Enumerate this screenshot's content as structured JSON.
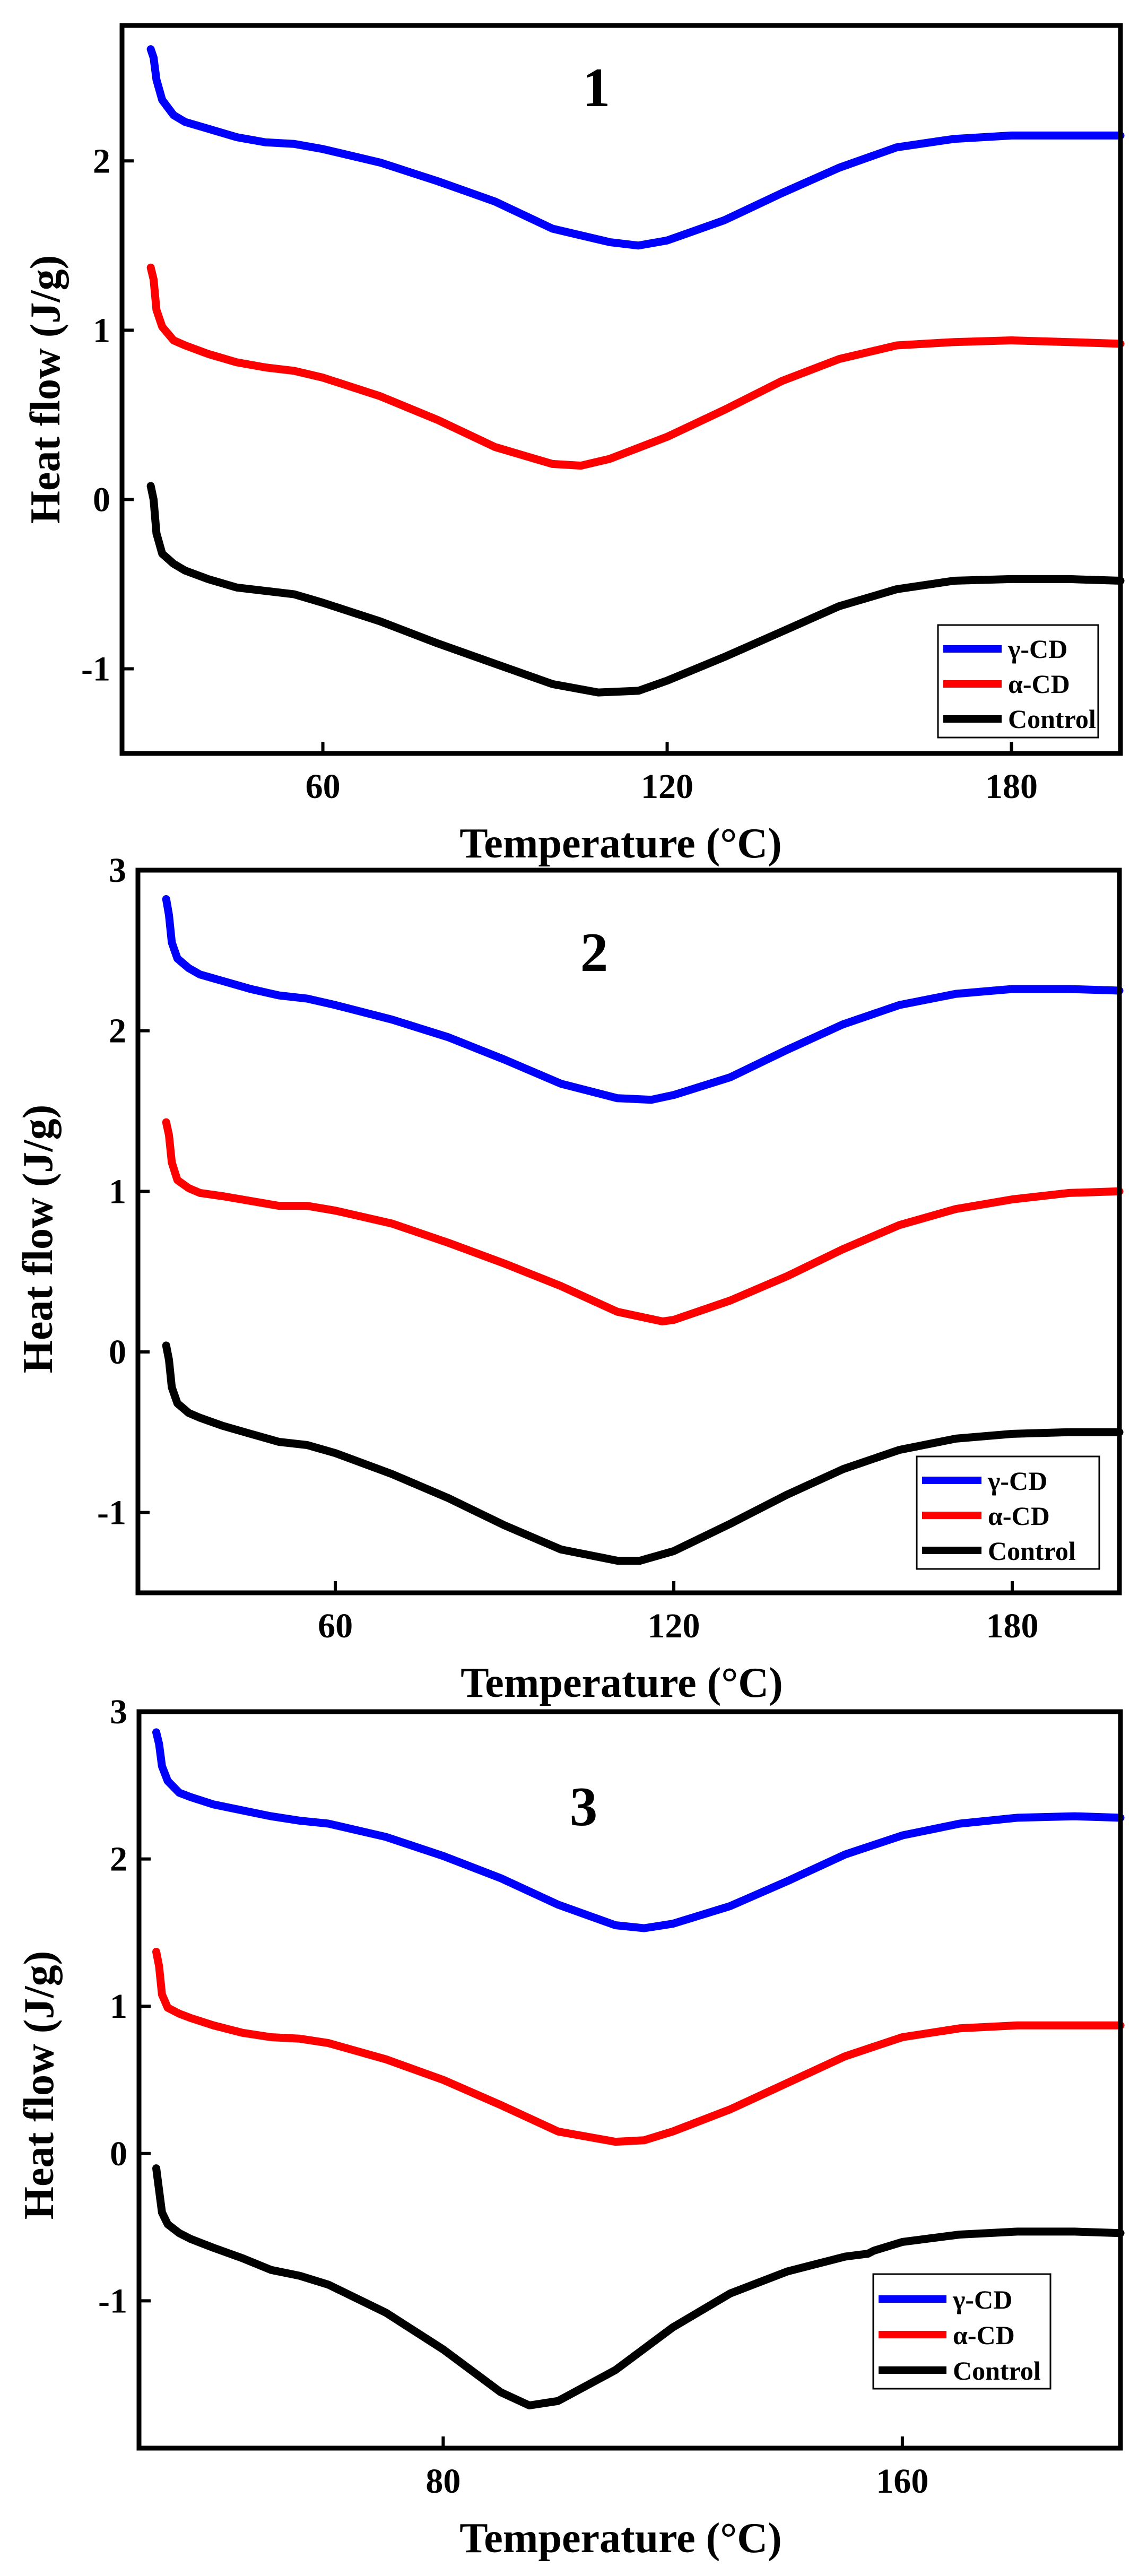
{
  "chart_data": [
    {
      "type": "line",
      "panel_label": "1",
      "xlabel": "Temperature (°C)",
      "ylabel": "Heat flow (J/g)",
      "xlim": [
        25,
        199
      ],
      "ylim": [
        -1.5,
        2.8
      ],
      "xticks": [
        60,
        120,
        180
      ],
      "xtick_labels": [
        "60",
        "120",
        "180"
      ],
      "yticks": [
        -1,
        0,
        1,
        2
      ],
      "ytick_labels": [
        "-1",
        "0",
        "1",
        "2"
      ],
      "legend_position": "bottom-right",
      "series": [
        {
          "name": "γ-CD",
          "color": "#0000ff",
          "x": [
            30,
            30.5,
            31,
            32,
            34,
            36,
            40,
            45,
            50,
            55,
            60,
            70,
            80,
            90,
            100,
            110,
            115,
            120,
            130,
            140,
            150,
            160,
            170,
            180,
            190,
            199
          ],
          "y": [
            2.66,
            2.61,
            2.48,
            2.36,
            2.27,
            2.23,
            2.19,
            2.14,
            2.11,
            2.1,
            2.07,
            1.99,
            1.88,
            1.76,
            1.6,
            1.52,
            1.5,
            1.53,
            1.65,
            1.81,
            1.96,
            2.08,
            2.13,
            2.15,
            2.15,
            2.15
          ]
        },
        {
          "name": "α-CD",
          "color": "#ff0000",
          "x": [
            30,
            30.5,
            31,
            32,
            34,
            36,
            40,
            45,
            50,
            55,
            60,
            70,
            80,
            90,
            100,
            105,
            110,
            120,
            130,
            140,
            150,
            160,
            170,
            180,
            190,
            199
          ],
          "y": [
            1.37,
            1.3,
            1.12,
            1.02,
            0.94,
            0.91,
            0.86,
            0.81,
            0.78,
            0.76,
            0.72,
            0.61,
            0.47,
            0.31,
            0.21,
            0.2,
            0.24,
            0.37,
            0.53,
            0.7,
            0.83,
            0.91,
            0.93,
            0.94,
            0.93,
            0.92
          ]
        },
        {
          "name": "Control",
          "color": "#000000",
          "x": [
            30,
            30.5,
            31,
            32,
            34,
            36,
            40,
            45,
            50,
            55,
            60,
            70,
            80,
            90,
            100,
            108,
            115,
            120,
            130,
            140,
            150,
            160,
            170,
            180,
            190,
            199
          ],
          "y": [
            0.08,
            0.0,
            -0.2,
            -0.32,
            -0.38,
            -0.42,
            -0.47,
            -0.52,
            -0.54,
            -0.56,
            -0.61,
            -0.72,
            -0.85,
            -0.97,
            -1.09,
            -1.14,
            -1.13,
            -1.07,
            -0.93,
            -0.78,
            -0.63,
            -0.53,
            -0.48,
            -0.47,
            -0.47,
            -0.48
          ]
        }
      ]
    },
    {
      "type": "line",
      "panel_label": "2",
      "xlabel": "Temperature (°C)",
      "ylabel": "Heat flow (J/g)",
      "xlim": [
        25,
        199
      ],
      "ylim": [
        -1.5,
        3.0
      ],
      "xticks": [
        60,
        120,
        180
      ],
      "xtick_labels": [
        "60",
        "120",
        "180"
      ],
      "yticks": [
        -1,
        0,
        1,
        2,
        3
      ],
      "ytick_labels": [
        "-1",
        "0",
        "1",
        "2",
        "3"
      ],
      "legend_position": "bottom-right",
      "series": [
        {
          "name": "γ-CD",
          "color": "#0000ff",
          "x": [
            30,
            30.5,
            31,
            32,
            34,
            36,
            40,
            45,
            50,
            55,
            60,
            70,
            80,
            90,
            100,
            110,
            116,
            120,
            130,
            140,
            150,
            160,
            170,
            180,
            190,
            199
          ],
          "y": [
            2.82,
            2.72,
            2.55,
            2.45,
            2.39,
            2.35,
            2.31,
            2.26,
            2.22,
            2.2,
            2.16,
            2.07,
            1.96,
            1.82,
            1.67,
            1.58,
            1.57,
            1.6,
            1.71,
            1.88,
            2.04,
            2.16,
            2.23,
            2.26,
            2.26,
            2.25
          ]
        },
        {
          "name": "α-CD",
          "color": "#ff0000",
          "x": [
            30,
            30.5,
            31,
            32,
            34,
            36,
            40,
            45,
            50,
            55,
            60,
            70,
            80,
            90,
            100,
            110,
            118,
            120,
            130,
            140,
            150,
            160,
            170,
            180,
            190,
            199
          ],
          "y": [
            1.43,
            1.35,
            1.18,
            1.07,
            1.02,
            0.99,
            0.97,
            0.94,
            0.91,
            0.91,
            0.88,
            0.8,
            0.68,
            0.55,
            0.41,
            0.25,
            0.19,
            0.2,
            0.32,
            0.47,
            0.64,
            0.79,
            0.89,
            0.95,
            0.99,
            1.0
          ]
        },
        {
          "name": "Control",
          "color": "#000000",
          "x": [
            30,
            30.5,
            31,
            32,
            34,
            36,
            40,
            45,
            50,
            55,
            60,
            70,
            80,
            90,
            100,
            110,
            114,
            120,
            130,
            140,
            150,
            160,
            170,
            180,
            190,
            199
          ],
          "y": [
            0.04,
            -0.05,
            -0.22,
            -0.32,
            -0.38,
            -0.41,
            -0.46,
            -0.51,
            -0.56,
            -0.58,
            -0.63,
            -0.76,
            -0.91,
            -1.08,
            -1.23,
            -1.3,
            -1.3,
            -1.24,
            -1.07,
            -0.89,
            -0.73,
            -0.61,
            -0.54,
            -0.51,
            -0.5,
            -0.5
          ]
        }
      ]
    },
    {
      "type": "line",
      "panel_label": "3",
      "xlabel": "Temperature (°C)",
      "ylabel": "Heat flow (J/g)",
      "xlim": [
        27,
        198
      ],
      "ylim": [
        -2.0,
        3.0
      ],
      "xticks": [
        80,
        160
      ],
      "xtick_labels": [
        "80",
        "160"
      ],
      "yticks": [
        -1,
        0,
        1,
        2,
        3
      ],
      "ytick_labels": [
        "-1",
        "0",
        "1",
        "2",
        "3"
      ],
      "legend_position": "bottom-right",
      "series": [
        {
          "name": "γ-CD",
          "color": "#0000ff",
          "x": [
            30,
            30.5,
            31,
            32,
            34,
            36,
            40,
            45,
            50,
            55,
            60,
            70,
            80,
            90,
            100,
            110,
            115,
            120,
            130,
            140,
            150,
            160,
            170,
            180,
            190,
            198
          ],
          "y": [
            2.86,
            2.78,
            2.63,
            2.53,
            2.45,
            2.42,
            2.37,
            2.33,
            2.29,
            2.26,
            2.24,
            2.15,
            2.02,
            1.87,
            1.69,
            1.55,
            1.53,
            1.56,
            1.68,
            1.85,
            2.03,
            2.16,
            2.24,
            2.28,
            2.29,
            2.28
          ]
        },
        {
          "name": "α-CD",
          "color": "#ff0000",
          "x": [
            30,
            30.5,
            31,
            32,
            34,
            36,
            40,
            45,
            50,
            55,
            60,
            70,
            80,
            90,
            100,
            110,
            115,
            120,
            130,
            140,
            150,
            160,
            170,
            180,
            190,
            198
          ],
          "y": [
            1.37,
            1.27,
            1.08,
            0.99,
            0.95,
            0.92,
            0.87,
            0.82,
            0.79,
            0.78,
            0.75,
            0.64,
            0.5,
            0.33,
            0.15,
            0.08,
            0.09,
            0.15,
            0.3,
            0.48,
            0.66,
            0.79,
            0.85,
            0.87,
            0.87,
            0.87
          ]
        },
        {
          "name": "Control",
          "color": "#000000",
          "x": [
            30,
            30.5,
            31,
            32,
            34,
            36,
            40,
            45,
            50,
            55,
            60,
            70,
            80,
            90,
            95,
            100,
            110,
            120,
            130,
            140,
            150,
            154,
            155,
            160,
            170,
            180,
            190,
            198
          ],
          "y": [
            -0.1,
            -0.25,
            -0.4,
            -0.48,
            -0.54,
            -0.58,
            -0.64,
            -0.71,
            -0.79,
            -0.83,
            -0.89,
            -1.08,
            -1.33,
            -1.62,
            -1.71,
            -1.68,
            -1.47,
            -1.18,
            -0.95,
            -0.8,
            -0.7,
            -0.68,
            -0.66,
            -0.6,
            -0.55,
            -0.53,
            -0.53,
            -0.54
          ]
        }
      ]
    }
  ]
}
